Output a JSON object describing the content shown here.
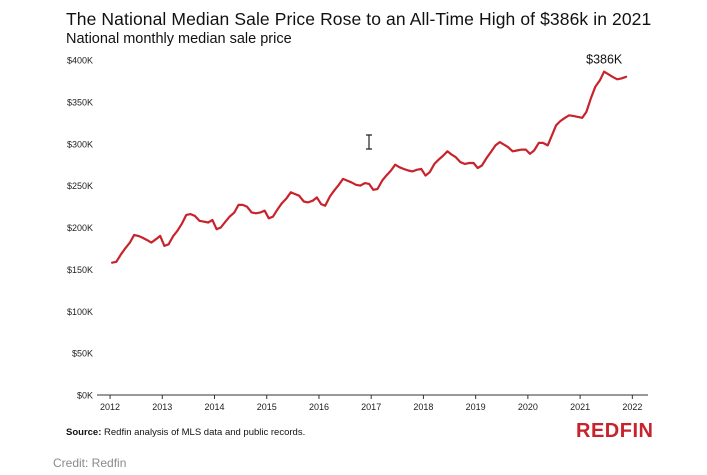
{
  "chart_data": {
    "type": "line",
    "title": "The National Median Sale Price Rose to an All-Time High of $386k in 2021",
    "subtitle": "National monthly median sale price",
    "xlabel": "",
    "ylabel": "",
    "ylim": [
      0,
      400000
    ],
    "xlim": [
      2011.75,
      2022.3
    ],
    "y_ticks": [
      {
        "value": 0,
        "label": "$0K"
      },
      {
        "value": 50000,
        "label": "$50K"
      },
      {
        "value": 100000,
        "label": "$100K"
      },
      {
        "value": 150000,
        "label": "$150K"
      },
      {
        "value": 200000,
        "label": "$200K"
      },
      {
        "value": 250000,
        "label": "$250K"
      },
      {
        "value": 300000,
        "label": "$300K"
      },
      {
        "value": 350000,
        "label": "$350K"
      },
      {
        "value": 400000,
        "label": "$400K"
      }
    ],
    "x_ticks": [
      {
        "value": 2012,
        "label": "2012"
      },
      {
        "value": 2013,
        "label": "2013"
      },
      {
        "value": 2014,
        "label": "2014"
      },
      {
        "value": 2015,
        "label": "2015"
      },
      {
        "value": 2016,
        "label": "2016"
      },
      {
        "value": 2017,
        "label": "2017"
      },
      {
        "value": 2018,
        "label": "2018"
      },
      {
        "value": 2019,
        "label": "2019"
      },
      {
        "value": 2020,
        "label": "2020"
      },
      {
        "value": 2021,
        "label": "2021"
      },
      {
        "value": 2022,
        "label": "2022"
      }
    ],
    "grid": false,
    "series_color": "#c8232c",
    "annotation": {
      "x": 2021.5,
      "y": 386000,
      "text": "$386K"
    },
    "series": [
      {
        "name": "",
        "x": [
          2012.04,
          2012.12,
          2012.21,
          2012.29,
          2012.38,
          2012.46,
          2012.54,
          2012.62,
          2012.71,
          2012.79,
          2012.88,
          2012.96,
          2013.04,
          2013.12,
          2013.21,
          2013.29,
          2013.38,
          2013.46,
          2013.54,
          2013.62,
          2013.71,
          2013.79,
          2013.88,
          2013.96,
          2014.04,
          2014.12,
          2014.21,
          2014.29,
          2014.38,
          2014.46,
          2014.54,
          2014.62,
          2014.71,
          2014.79,
          2014.88,
          2014.96,
          2015.04,
          2015.12,
          2015.21,
          2015.29,
          2015.38,
          2015.46,
          2015.54,
          2015.62,
          2015.71,
          2015.79,
          2015.88,
          2015.96,
          2016.04,
          2016.12,
          2016.21,
          2016.29,
          2016.38,
          2016.46,
          2016.54,
          2016.62,
          2016.71,
          2016.79,
          2016.88,
          2016.96,
          2017.04,
          2017.12,
          2017.21,
          2017.29,
          2017.38,
          2017.46,
          2017.54,
          2017.62,
          2017.71,
          2017.79,
          2017.88,
          2017.96,
          2018.04,
          2018.12,
          2018.21,
          2018.29,
          2018.38,
          2018.46,
          2018.54,
          2018.62,
          2018.71,
          2018.79,
          2018.88,
          2018.96,
          2019.04,
          2019.12,
          2019.21,
          2019.29,
          2019.38,
          2019.46,
          2019.54,
          2019.62,
          2019.71,
          2019.79,
          2019.88,
          2019.96,
          2020.04,
          2020.12,
          2020.21,
          2020.29,
          2020.38,
          2020.46,
          2020.54,
          2020.62,
          2020.71,
          2020.79,
          2020.88,
          2020.96,
          2021.04,
          2021.12,
          2021.21,
          2021.29,
          2021.38,
          2021.46,
          2021.54,
          2021.62,
          2021.71,
          2021.79,
          2021.88
        ],
        "values": [
          158000,
          159000,
          168000,
          175000,
          182000,
          191000,
          190000,
          188000,
          185000,
          182000,
          186000,
          190000,
          178000,
          180000,
          190000,
          196000,
          205000,
          215000,
          216000,
          214000,
          208000,
          207000,
          206000,
          209000,
          198000,
          200000,
          207000,
          213000,
          218000,
          227000,
          227000,
          225000,
          218000,
          217000,
          218000,
          220000,
          211000,
          213000,
          222000,
          229000,
          235000,
          242000,
          240000,
          238000,
          231000,
          230000,
          232000,
          236000,
          228000,
          226000,
          237000,
          244000,
          251000,
          258000,
          256000,
          254000,
          251000,
          250000,
          253000,
          252000,
          245000,
          246000,
          256000,
          262000,
          268000,
          275000,
          272000,
          270000,
          268000,
          267000,
          269000,
          270000,
          262000,
          266000,
          276000,
          281000,
          286000,
          291000,
          287000,
          284000,
          278000,
          276000,
          277000,
          277000,
          271000,
          274000,
          283000,
          290000,
          298000,
          302000,
          299000,
          296000,
          291000,
          292000,
          293000,
          293000,
          288000,
          292000,
          301000,
          301000,
          298000,
          310000,
          322000,
          327000,
          331000,
          334000,
          333000,
          332000,
          331000,
          338000,
          355000,
          368000,
          376000,
          386000,
          383000,
          380000,
          377000,
          378000,
          380000
        ]
      }
    ]
  },
  "footer": {
    "source_label": "Source:",
    "source_text": " Redfin analysis of MLS data and public records.",
    "logo_text": "REDFIN",
    "logo_color": "#c8232c",
    "credit": "Credit: Redfin"
  },
  "icons": {
    "cursor": "text-cursor-icon"
  }
}
